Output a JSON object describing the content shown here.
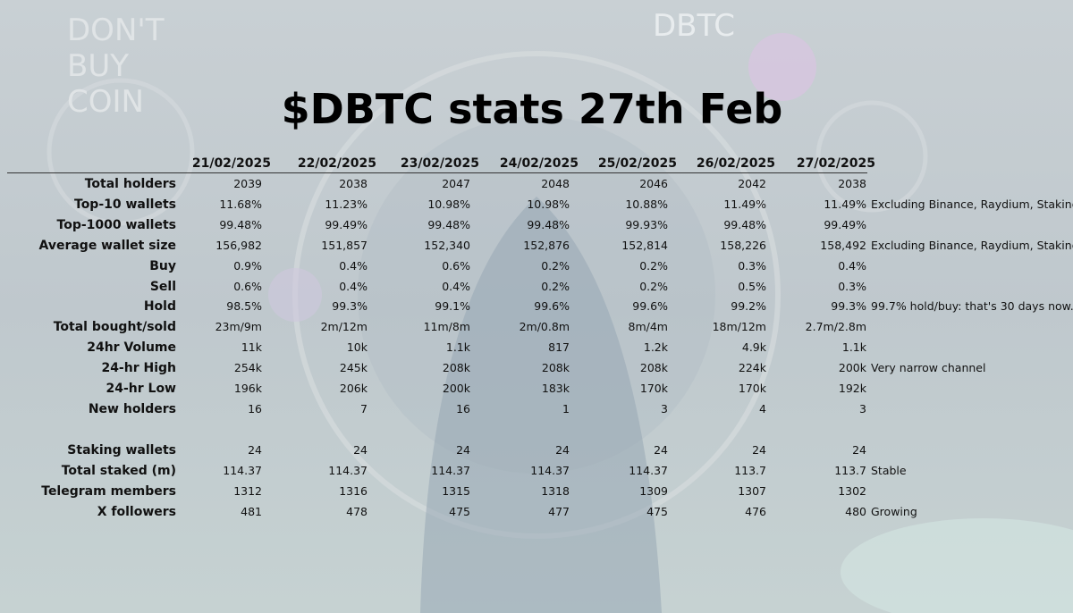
{
  "title": "$DBTC stats 27th Feb",
  "columns": [
    "21/02/2025",
    "22/02/2025",
    "23/02/2025",
    "24/02/2025",
    "25/02/2025",
    "26/02/2025",
    "27/02/2025"
  ],
  "sections": [
    {
      "rows": [
        {
          "label": "Total holders",
          "values": [
            "2039",
            "2038",
            "2047",
            "2048",
            "2046",
            "2042",
            "2038"
          ]
        },
        {
          "label": "Top-10 wallets",
          "values": [
            "11.68%",
            "11.23%",
            "10.98%",
            "10.98%",
            "10.88%",
            "11.49%",
            "11.49%"
          ],
          "note": "Excluding Binance, Raydium, Staking"
        },
        {
          "label": "Top-1000 wallets",
          "values": [
            "99.48%",
            "99.49%",
            "99.48%",
            "99.48%",
            "99.93%",
            "99.48%",
            "99.49%"
          ]
        },
        {
          "label": "Average wallet size",
          "values": [
            "156,982",
            "151,857",
            "152,340",
            "152,876",
            "152,814",
            "158,226",
            "158,492"
          ],
          "note": "Excluding Binance, Raydium, Staking"
        },
        {
          "label": "Buy",
          "values": [
            "0.9%",
            "0.4%",
            "0.6%",
            "0.2%",
            "0.2%",
            "0.3%",
            "0.4%"
          ]
        },
        {
          "label": "Sell",
          "values": [
            "0.6%",
            "0.4%",
            "0.4%",
            "0.2%",
            "0.2%",
            "0.5%",
            "0.3%"
          ]
        },
        {
          "label": "Hold",
          "values": [
            "98.5%",
            "99.3%",
            "99.1%",
            "99.6%",
            "99.6%",
            "99.2%",
            "99.3%"
          ],
          "note": "99.7% hold/buy: that's 30 days now."
        },
        {
          "label": "Total bought/sold",
          "values": [
            "23m/9m",
            "2m/12m",
            "11m/8m",
            "2m/0.8m",
            "8m/4m",
            "18m/12m",
            "2.7m/2.8m"
          ]
        },
        {
          "label": "24hr Volume",
          "values": [
            "11k",
            "10k",
            "1.1k",
            "817",
            "1.2k",
            "4.9k",
            "1.1k"
          ]
        },
        {
          "label": "24-hr High",
          "values": [
            "254k",
            "245k",
            "208k",
            "208k",
            "208k",
            "224k",
            "200k"
          ],
          "note": "Very narrow channel"
        },
        {
          "label": "24-hr Low",
          "values": [
            "196k",
            "206k",
            "200k",
            "183k",
            "170k",
            "170k",
            "192k"
          ]
        },
        {
          "label": "New holders",
          "values": [
            "16",
            "7",
            "16",
            "1",
            "3",
            "4",
            "3"
          ]
        }
      ]
    },
    {
      "rows": [
        {
          "label": "Staking wallets",
          "values": [
            "24",
            "24",
            "24",
            "24",
            "24",
            "24",
            "24"
          ]
        },
        {
          "label": "Total staked (m)",
          "values": [
            "114.37",
            "114.37",
            "114.37",
            "114.37",
            "114.37",
            "113.7",
            "113.7"
          ],
          "note": "Stable"
        },
        {
          "label": "Telegram members",
          "values": [
            "1312",
            "1316",
            "1315",
            "1318",
            "1309",
            "1307",
            "1302"
          ]
        },
        {
          "label": "X followers",
          "values": [
            "481",
            "478",
            "475",
            "477",
            "475",
            "476",
            "480"
          ],
          "note": "Growing"
        }
      ]
    }
  ]
}
